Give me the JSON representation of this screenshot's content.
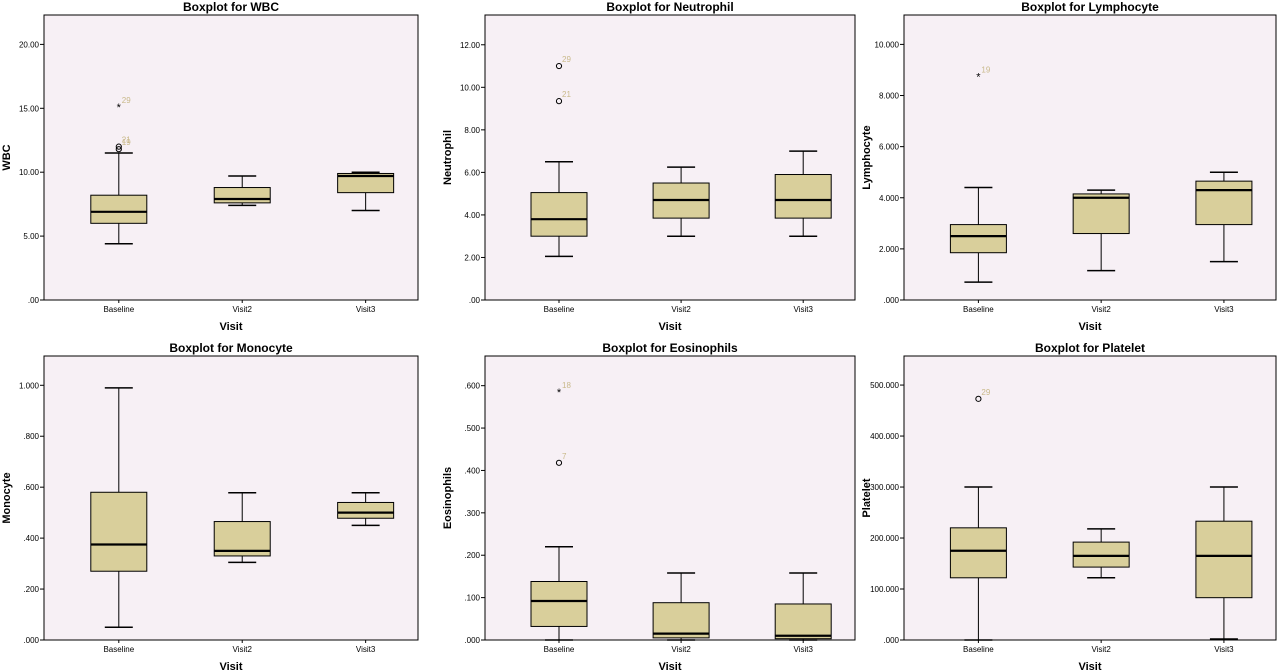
{
  "colors": {
    "plot_bg": "#f7f0f5",
    "box_fill": "#d9cf9b",
    "outline": "#000000",
    "outlier_label": "#c9b98a"
  },
  "chart_data": [
    {
      "type": "boxplot",
      "title": "Boxplot for WBC",
      "xlabel": "Visit",
      "ylabel": "WBC",
      "categories": [
        "Baseline",
        "Visit2",
        "Visit3"
      ],
      "ylim": [
        0,
        22.3
      ],
      "yticks": [
        0,
        5,
        10,
        15,
        20
      ],
      "yticklabels": [
        ".00",
        "5.00",
        "10.00",
        "15.00",
        "20.00"
      ],
      "boxes": [
        {
          "min": 4.4,
          "q1": 6.0,
          "median": 6.9,
          "q3": 8.2,
          "max": 11.5
        },
        {
          "min": 7.4,
          "q1": 7.6,
          "median": 7.9,
          "q3": 8.8,
          "max": 9.7
        },
        {
          "min": 7.0,
          "q1": 8.4,
          "median": 9.7,
          "q3": 9.9,
          "max": 10.0
        }
      ],
      "outliers": [
        {
          "category": 0,
          "value": 15.1,
          "marker": "star",
          "label": "29"
        },
        {
          "category": 0,
          "value": 12.0,
          "marker": "circle",
          "label": "21"
        },
        {
          "category": 0,
          "value": 11.8,
          "marker": "circle",
          "label": "19"
        }
      ],
      "grid": false
    },
    {
      "type": "boxplot",
      "title": "Boxplot for Neutrophil",
      "xlabel": "Visit",
      "ylabel": "Neutrophil",
      "categories": [
        "Baseline",
        "Visit2",
        "Visit3"
      ],
      "ylim": [
        0,
        13.4
      ],
      "yticks": [
        0,
        2,
        4,
        6,
        8,
        10,
        12
      ],
      "yticklabels": [
        ".00",
        "2.00",
        "4.00",
        "6.00",
        "8.00",
        "10.00",
        "12.00"
      ],
      "boxes": [
        {
          "min": 2.05,
          "q1": 3.0,
          "median": 3.8,
          "q3": 5.05,
          "max": 6.5
        },
        {
          "min": 3.0,
          "q1": 3.85,
          "median": 4.7,
          "q3": 5.5,
          "max": 6.25
        },
        {
          "min": 3.0,
          "q1": 3.85,
          "median": 4.7,
          "q3": 5.9,
          "max": 7.0
        }
      ],
      "outliers": [
        {
          "category": 0,
          "value": 11.0,
          "marker": "circle",
          "label": "29"
        },
        {
          "category": 0,
          "value": 9.35,
          "marker": "circle",
          "label": "21"
        }
      ],
      "grid": false
    },
    {
      "type": "boxplot",
      "title": "Boxplot for Lymphocyte",
      "xlabel": "Visit",
      "ylabel": "Lymphocyte",
      "categories": [
        "Baseline",
        "Visit2",
        "Visit3"
      ],
      "ylim": [
        0,
        11.15
      ],
      "yticks": [
        0,
        2,
        4,
        6,
        8,
        10
      ],
      "yticklabels": [
        ".000",
        "2.000",
        "4.000",
        "6.000",
        "8.000",
        "10.000"
      ],
      "boxes": [
        {
          "min": 0.7,
          "q1": 1.85,
          "median": 2.5,
          "q3": 2.95,
          "max": 4.4
        },
        {
          "min": 1.15,
          "q1": 2.6,
          "median": 4.0,
          "q3": 4.15,
          "max": 4.3
        },
        {
          "min": 1.5,
          "q1": 2.95,
          "median": 4.3,
          "q3": 4.65,
          "max": 5.0
        }
      ],
      "outliers": [
        {
          "category": 0,
          "value": 8.75,
          "marker": "star",
          "label": "19"
        }
      ],
      "grid": false
    },
    {
      "type": "boxplot",
      "title": "Boxplot for Monocyte",
      "xlabel": "Visit",
      "ylabel": "Monocyte",
      "categories": [
        "Baseline",
        "Visit2",
        "Visit3"
      ],
      "ylim": [
        0,
        1.115
      ],
      "yticks": [
        0,
        0.2,
        0.4,
        0.6,
        0.8,
        1.0
      ],
      "yticklabels": [
        ".000",
        ".200",
        ".400",
        ".600",
        ".800",
        "1.000"
      ],
      "boxes": [
        {
          "min": 0.05,
          "q1": 0.27,
          "median": 0.375,
          "q3": 0.58,
          "max": 0.99
        },
        {
          "min": 0.305,
          "q1": 0.33,
          "median": 0.35,
          "q3": 0.465,
          "max": 0.578
        },
        {
          "min": 0.45,
          "q1": 0.478,
          "median": 0.5,
          "q3": 0.54,
          "max": 0.578
        }
      ],
      "outliers": [],
      "grid": false
    },
    {
      "type": "boxplot",
      "title": "Boxplot for Eosinophils",
      "xlabel": "Visit",
      "ylabel": "Eosinophils",
      "categories": [
        "Baseline",
        "Visit2",
        "Visit3"
      ],
      "ylim": [
        0,
        0.67
      ],
      "yticks": [
        0,
        0.1,
        0.2,
        0.3,
        0.4,
        0.5,
        0.6
      ],
      "yticklabels": [
        ".000",
        ".100",
        ".200",
        ".300",
        ".400",
        ".500",
        ".600"
      ],
      "boxes": [
        {
          "min": 0.0,
          "q1": 0.032,
          "median": 0.092,
          "q3": 0.138,
          "max": 0.22
        },
        {
          "min": 0.0,
          "q1": 0.005,
          "median": 0.015,
          "q3": 0.088,
          "max": 0.158
        },
        {
          "min": 0.0,
          "q1": 0.003,
          "median": 0.01,
          "q3": 0.085,
          "max": 0.158
        }
      ],
      "outliers": [
        {
          "category": 0,
          "value": 0.585,
          "marker": "star",
          "label": "18"
        },
        {
          "category": 0,
          "value": 0.418,
          "marker": "circle",
          "label": "7"
        }
      ],
      "grid": false
    },
    {
      "type": "boxplot",
      "title": "Boxplot for Platelet",
      "xlabel": "Visit",
      "ylabel": "Platelet",
      "categories": [
        "Baseline",
        "Visit2",
        "Visit3"
      ],
      "ylim": [
        0,
        557
      ],
      "yticks": [
        0,
        100,
        200,
        300,
        400,
        500
      ],
      "yticklabels": [
        ".000",
        "100.000",
        "200.000",
        "300.000",
        "400.000",
        "500.000"
      ],
      "boxes": [
        {
          "min": 0,
          "q1": 122,
          "median": 175,
          "q3": 220,
          "max": 300
        },
        {
          "min": 122,
          "q1": 143,
          "median": 165,
          "q3": 192,
          "max": 218
        },
        {
          "min": 2,
          "q1": 83,
          "median": 165,
          "q3": 233,
          "max": 300
        }
      ],
      "outliers": [
        {
          "category": 0,
          "value": 473,
          "marker": "circle",
          "label": "29"
        }
      ],
      "grid": false
    }
  ]
}
